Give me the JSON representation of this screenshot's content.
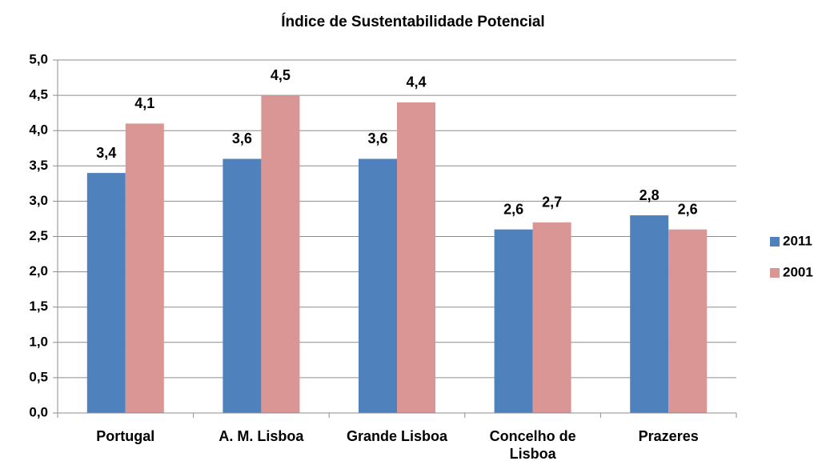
{
  "chart_data": {
    "type": "bar",
    "title": "Índice de Sustentabilidade Potencial",
    "categories": [
      "Portugal",
      "A. M. Lisboa",
      "Grande Lisboa",
      "Concelho de Lisboa",
      "Prazeres"
    ],
    "series": [
      {
        "name": "2011",
        "color": "#4f81bd",
        "values": [
          3.4,
          3.6,
          3.6,
          2.6,
          2.8
        ],
        "value_labels": [
          "3,4",
          "3,6",
          "3,6",
          "2,6",
          "2,8"
        ]
      },
      {
        "name": "2001",
        "color": "#d99694",
        "values": [
          4.1,
          4.5,
          4.4,
          2.7,
          2.6
        ],
        "value_labels": [
          "4,1",
          "4,5",
          "4,4",
          "2,7",
          "2,6"
        ]
      }
    ],
    "ylim": [
      0,
      5
    ],
    "yticks": [
      {
        "value": 0,
        "label": "0,0"
      },
      {
        "value": 0.5,
        "label": "0,5"
      },
      {
        "value": 1,
        "label": "1,0"
      },
      {
        "value": 1.5,
        "label": "1,5"
      },
      {
        "value": 2,
        "label": "2,0"
      },
      {
        "value": 2.5,
        "label": "2,5"
      },
      {
        "value": 3,
        "label": "3,0"
      },
      {
        "value": 3.5,
        "label": "3,5"
      },
      {
        "value": 4,
        "label": "4,0"
      },
      {
        "value": 4.5,
        "label": "4,5"
      },
      {
        "value": 5,
        "label": "5,0"
      }
    ],
    "grid": true,
    "legend": "right"
  }
}
